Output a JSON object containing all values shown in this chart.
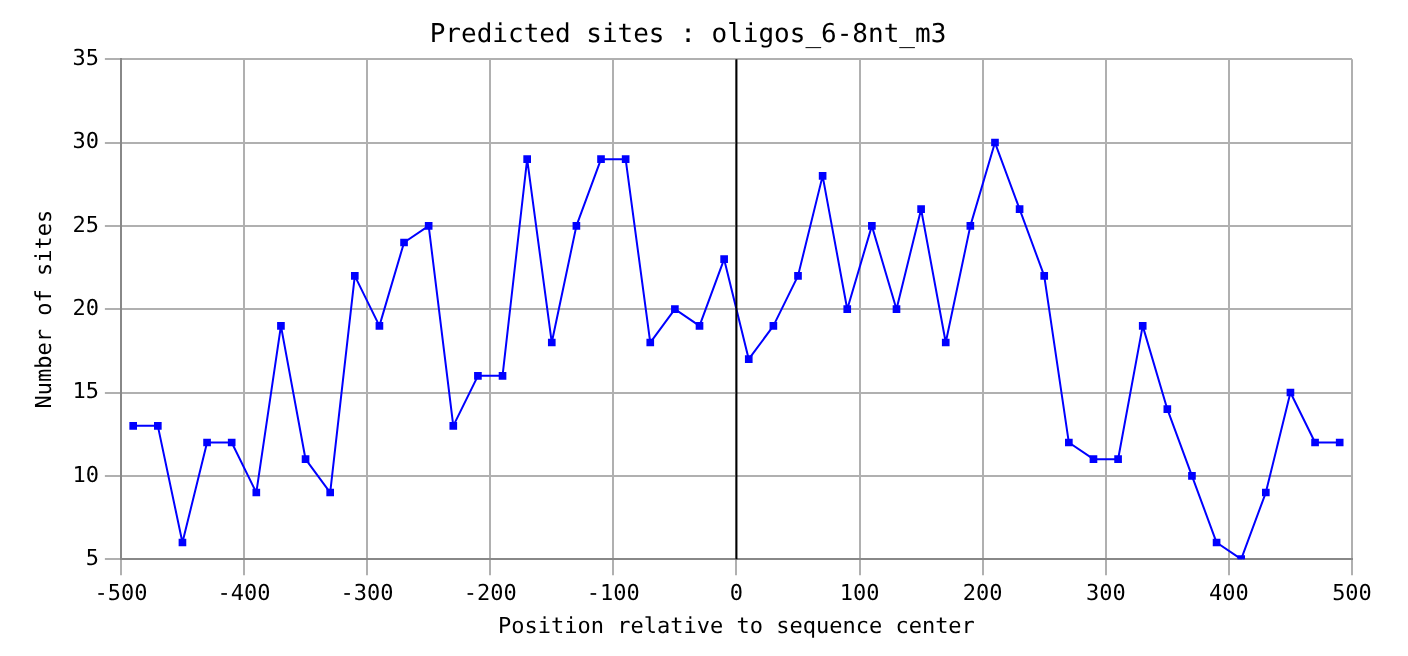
{
  "chart_data": {
    "type": "line",
    "title": "Predicted sites : oligos_6-8nt_m3",
    "xlabel": "Position relative to sequence center",
    "ylabel": "Number of sites",
    "x": [
      -490,
      -470,
      -450,
      -430,
      -410,
      -390,
      -370,
      -350,
      -330,
      -310,
      -290,
      -270,
      -250,
      -230,
      -210,
      -190,
      -170,
      -150,
      -130,
      -110,
      -90,
      -70,
      -50,
      -30,
      -10,
      10,
      30,
      50,
      70,
      90,
      110,
      130,
      150,
      170,
      190,
      210,
      230,
      250,
      270,
      290,
      310,
      330,
      350,
      370,
      390,
      410,
      430,
      450,
      470,
      490
    ],
    "series": [
      {
        "color": "#0000ff",
        "values": [
          13,
          13,
          6,
          12,
          12,
          9,
          19,
          11,
          9,
          22,
          19,
          24,
          25,
          13,
          16,
          16,
          29,
          18,
          25,
          29,
          29,
          18,
          20,
          19,
          23,
          17,
          19,
          22,
          28,
          20,
          25,
          20,
          26,
          18,
          25,
          30,
          26,
          22,
          12,
          11,
          11,
          19,
          14,
          10,
          6,
          5,
          9,
          15,
          12,
          12
        ]
      }
    ],
    "xlim": [
      -500,
      500
    ],
    "xticks": [
      -500,
      -400,
      -300,
      -200,
      -100,
      0,
      100,
      200,
      300,
      400,
      500
    ],
    "ylim": [
      5,
      35
    ],
    "yticks": [
      5,
      10,
      15,
      20,
      25,
      30,
      35
    ],
    "ref_lines": [
      {
        "axis": "x",
        "value": 0,
        "color": "#000000"
      }
    ],
    "grid": true,
    "marker": "square",
    "line_style": "solid",
    "legend": false
  }
}
